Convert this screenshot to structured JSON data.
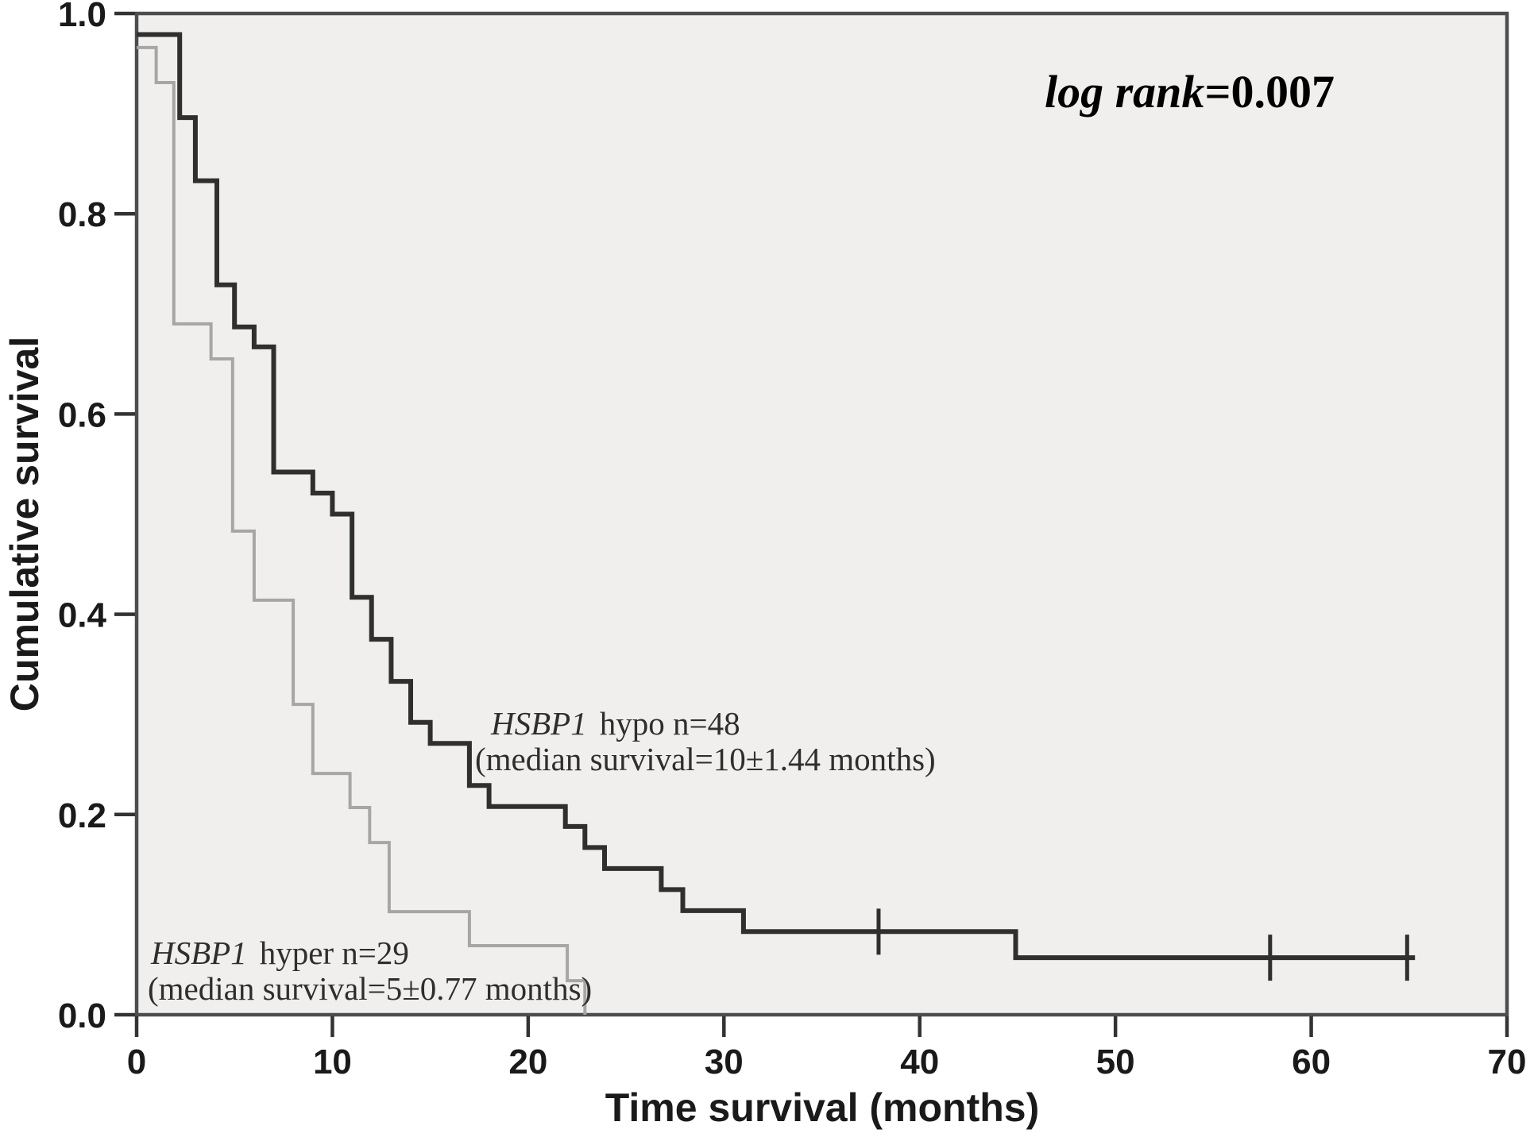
{
  "chart_data": {
    "type": "line",
    "subtype": "kaplan-meier-step",
    "title": "",
    "xlabel": "Time survival (months)",
    "ylabel": "Cumulative survival",
    "xlim": [
      0,
      70
    ],
    "ylim": [
      0,
      1.0
    ],
    "x_ticks": [
      0,
      10,
      20,
      30,
      40,
      50,
      60,
      70
    ],
    "y_ticks": [
      "0.0",
      "0.2",
      "0.4",
      "0.6",
      "0.8",
      "1.0"
    ],
    "grid": false,
    "legend_position": "inline-annotations",
    "plot_bg": "#f0efee",
    "frame_color": "#4d4d4d",
    "annotation": "log rank=0.007",
    "series": [
      {
        "id": "hyper",
        "name": "HSBP1 hyper",
        "n": 29,
        "median_survival": "5±0.77 months",
        "color": "#a6a6a6",
        "stroke_width": 4,
        "start": 0.966,
        "steps": [
          [
            1.0,
            0.931
          ],
          [
            1.9,
            0.69
          ],
          [
            3.8,
            0.655
          ],
          [
            4.9,
            0.483
          ],
          [
            6.0,
            0.414
          ],
          [
            8.0,
            0.31
          ],
          [
            9.0,
            0.241
          ],
          [
            10.9,
            0.207
          ],
          [
            11.9,
            0.172
          ],
          [
            12.9,
            0.103
          ],
          [
            17.0,
            0.069
          ],
          [
            22.0,
            0.034
          ],
          [
            22.9,
            0.0
          ]
        ],
        "end": 22.9,
        "censors": []
      },
      {
        "id": "hypo",
        "name": "HSBP1 hypo",
        "n": 48,
        "median_survival": "10±1.44 months",
        "color": "#2f2f2f",
        "stroke_width": 6,
        "start": 0.979,
        "steps": [
          [
            2.2,
            0.896
          ],
          [
            3.0,
            0.833
          ],
          [
            4.1,
            0.729
          ],
          [
            5.0,
            0.687
          ],
          [
            6.0,
            0.667
          ],
          [
            7.0,
            0.542
          ],
          [
            9.0,
            0.521
          ],
          [
            10.0,
            0.5
          ],
          [
            11.0,
            0.417
          ],
          [
            12.0,
            0.375
          ],
          [
            13.0,
            0.333
          ],
          [
            14.0,
            0.292
          ],
          [
            15.0,
            0.271
          ],
          [
            17.0,
            0.229
          ],
          [
            18.0,
            0.208
          ],
          [
            21.9,
            0.188
          ],
          [
            22.9,
            0.167
          ],
          [
            23.9,
            0.146
          ],
          [
            26.8,
            0.125
          ],
          [
            27.9,
            0.104
          ],
          [
            31.0,
            0.083
          ],
          [
            44.9,
            0.057
          ]
        ],
        "end": 65.3,
        "censors": [
          [
            37.9,
            0.083
          ],
          [
            57.9,
            0.057
          ],
          [
            64.9,
            0.057
          ]
        ]
      }
    ]
  },
  "labels": {
    "gene": "HSBP1",
    "hypo_rest": "hypo n=48",
    "hypo_median": "(median survival=10±1.44 months)",
    "hyper_rest": "hyper n=29",
    "hyper_median": "(median survival=5±0.77 months)",
    "logrank_prefix": "log rank",
    "logrank_value": "=0.007"
  }
}
